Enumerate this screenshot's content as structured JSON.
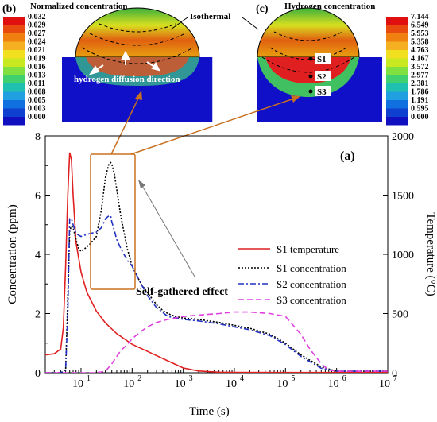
{
  "colors": {
    "s1_temperature": "#e02020",
    "s1_concentration": "#000000",
    "s2_concentration": "#2030c0",
    "s3_concentration": "#e040e0",
    "callout": "#c87020",
    "panel_background": "#1010c8"
  },
  "panels": {
    "b": {
      "tag": "(b)",
      "colorbar_title": "Normalized concentration",
      "colorbar_ticks": [
        "0.032",
        "0.029",
        "0.027",
        "0.024",
        "0.021",
        "0.019",
        "0.016",
        "0.013",
        "0.011",
        "0.008",
        "0.005",
        "0.003",
        "0.000"
      ],
      "annotation_isothermal": "Isothermal",
      "annotation_diffusion": "hydrogen diffusion direction"
    },
    "c": {
      "tag": "(c)",
      "colorbar_title": "Hydrogen concentration",
      "colorbar_ticks": [
        "7.144",
        "6.549",
        "5.953",
        "5.358",
        "4.763",
        "4.167",
        "3.572",
        "2.977",
        "2.381",
        "1.786",
        "1.191",
        "0.595",
        "0.000"
      ],
      "points": [
        "S1",
        "S2",
        "S3"
      ]
    }
  },
  "chart_data": {
    "type": "line",
    "tag": "(a)",
    "xlabel": "Time (s)",
    "ylabel": "Concentration (ppm)",
    "y2label": "Temperature (°C)",
    "xscale": "log",
    "xlim": [
      2,
      10000000
    ],
    "ylim": [
      0,
      8
    ],
    "y2lim": [
      0,
      2000
    ],
    "x_ticks": [
      {
        "base": "10",
        "exp": "1",
        "value": 10
      },
      {
        "base": "10",
        "exp": "2",
        "value": 100
      },
      {
        "base": "10",
        "exp": "3",
        "value": 1000
      },
      {
        "base": "10",
        "exp": "4",
        "value": 10000
      },
      {
        "base": "10",
        "exp": "5",
        "value": 100000
      },
      {
        "base": "10",
        "exp": "6",
        "value": 1000000
      },
      {
        "base": "10",
        "exp": "7",
        "value": 10000000
      }
    ],
    "y_ticks": [
      "0",
      "2",
      "4",
      "6",
      "8"
    ],
    "y2_ticks": [
      "0",
      "500",
      "1000",
      "1500",
      "2000"
    ],
    "annotation": "Self-gathered effect",
    "series": [
      {
        "name": "S1 temperature",
        "axis": "right",
        "style": "solid",
        "x": [
          2,
          3,
          4,
          4.5,
          5,
          5.5,
          6,
          6.5,
          7,
          8,
          10,
          13,
          20,
          30,
          50,
          100,
          200,
          500,
          1000,
          2000,
          5000,
          10000,
          100000.0,
          10000000.0
        ],
        "y": [
          150,
          160,
          200,
          380,
          900,
          1500,
          1860,
          1800,
          1500,
          1100,
          850,
          680,
          520,
          420,
          330,
          240,
          180,
          100,
          40,
          15,
          5,
          3,
          2,
          2
        ]
      },
      {
        "name": "S1 concentration",
        "axis": "left",
        "style": "dotted",
        "x": [
          2,
          4,
          5,
          5.5,
          6,
          6.5,
          7,
          8,
          9,
          10,
          12,
          15,
          20,
          25,
          30,
          35,
          38,
          40,
          45,
          50,
          60,
          80,
          100,
          150,
          200,
          300,
          400,
          500,
          700,
          1000,
          2000,
          5000,
          10000,
          20000,
          50000,
          100000,
          200000,
          500000,
          1000000,
          10000000
        ],
        "y": [
          0,
          0,
          0.1,
          2.5,
          4.8,
          4.95,
          4.9,
          4.5,
          4.2,
          4.1,
          4.2,
          4.35,
          4.6,
          5.5,
          6.6,
          7.05,
          7.1,
          7.05,
          6.7,
          6.2,
          5.3,
          4.2,
          3.6,
          3.0,
          2.7,
          2.3,
          2.1,
          2.0,
          1.9,
          1.85,
          1.8,
          1.7,
          1.6,
          1.5,
          1.3,
          1.0,
          0.6,
          0.2,
          0.05,
          0.05
        ]
      },
      {
        "name": "S2 concentration",
        "axis": "left",
        "style": "dashdot",
        "x": [
          2,
          4,
          5,
          5.5,
          6,
          6.5,
          7,
          8,
          10,
          12,
          15,
          20,
          25,
          30,
          35,
          38,
          40,
          45,
          50,
          60,
          80,
          100,
          150,
          200,
          300,
          500,
          1000,
          2000,
          5000,
          10000,
          20000,
          50000,
          100000,
          200000,
          500000,
          1000000,
          10000000
        ],
        "y": [
          0,
          0,
          0.1,
          2.0,
          5.2,
          5.2,
          5.0,
          4.7,
          4.6,
          4.65,
          4.7,
          4.75,
          4.9,
          5.2,
          5.3,
          5.3,
          5.1,
          4.8,
          4.5,
          4.2,
          3.8,
          3.6,
          3.0,
          2.6,
          2.2,
          1.9,
          1.8,
          1.75,
          1.65,
          1.55,
          1.45,
          1.25,
          0.95,
          0.55,
          0.15,
          0.05,
          0.05
        ]
      },
      {
        "name": "S3 concentration",
        "axis": "left",
        "style": "dashed",
        "x": [
          2,
          20,
          30,
          40,
          50,
          60,
          80,
          100,
          150,
          200,
          300,
          500,
          700,
          1000,
          2000,
          5000,
          10000,
          20000,
          50000,
          100000,
          200000,
          300000,
          500000,
          700000,
          1000000,
          10000000
        ],
        "y": [
          0,
          0,
          0.05,
          0.3,
          0.55,
          0.75,
          0.95,
          1.15,
          1.4,
          1.55,
          1.7,
          1.8,
          1.85,
          1.9,
          1.95,
          2.0,
          2.05,
          2.05,
          2.0,
          1.9,
          1.3,
          0.8,
          0.3,
          0.1,
          0.05,
          0.05
        ]
      }
    ]
  }
}
